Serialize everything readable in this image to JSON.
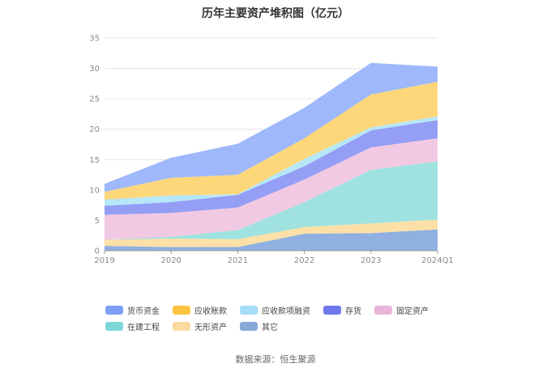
{
  "chart_data": {
    "type": "area",
    "stacked": true,
    "title": "历年主要资产堆积图（亿元）",
    "categories": [
      "2019",
      "2020",
      "2021",
      "2022",
      "2023",
      "2024Q1"
    ],
    "ylim": [
      0,
      35
    ],
    "yticks": [
      0,
      5,
      10,
      15,
      20,
      25,
      30,
      35
    ],
    "grid": true,
    "legend_position": "bottom",
    "series": [
      {
        "name": "其它",
        "color": "#8fb0e0",
        "values": [
          0.8,
          0.6,
          0.6,
          2.8,
          2.9,
          3.5
        ]
      },
      {
        "name": "无形资产",
        "color": "#fde0a8",
        "values": [
          1.0,
          1.4,
          1.3,
          1.1,
          1.6,
          1.6
        ]
      },
      {
        "name": "在建工程",
        "color": "#9fe2e0",
        "values": [
          0.0,
          0.3,
          1.5,
          4.1,
          8.8,
          9.6
        ]
      },
      {
        "name": "固定资产",
        "color": "#f2c9e2",
        "values": [
          4.1,
          3.9,
          3.7,
          3.7,
          3.7,
          3.8
        ]
      },
      {
        "name": "存货",
        "color": "#949ef4",
        "values": [
          1.5,
          1.8,
          2.1,
          2.2,
          2.8,
          3.0
        ]
      },
      {
        "name": "应收款项融资",
        "color": "#b6e7f8",
        "values": [
          1.0,
          1.1,
          0.1,
          1.2,
          0.5,
          0.6
        ]
      },
      {
        "name": "应收账款",
        "color": "#fed77a",
        "values": [
          1.3,
          2.9,
          3.2,
          3.4,
          5.4,
          5.7
        ]
      },
      {
        "name": "货币资金",
        "color": "#9eb8fb",
        "values": [
          1.3,
          3.3,
          5.1,
          5.0,
          5.2,
          2.5
        ]
      }
    ],
    "legend_order": [
      "货币资金",
      "应收账款",
      "应收款项融资",
      "存货",
      "固定资产",
      "在建工程",
      "无形资产",
      "其它"
    ],
    "legend_colors": {
      "货币资金": "#7f9ff7",
      "应收账款": "#fcc440",
      "应收款项融资": "#a6dcf6",
      "存货": "#6f78ec",
      "固定资产": "#eab4d8",
      "在建工程": "#7bd8d6",
      "无形资产": "#fcd9a0",
      "其它": "#88a8d8"
    }
  },
  "source": "数据来源：恒生聚源"
}
